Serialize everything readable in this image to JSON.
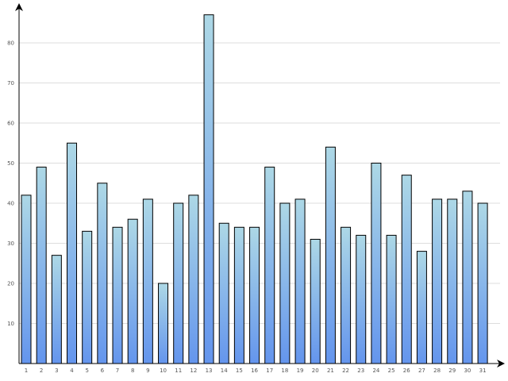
{
  "chart_data": {
    "type": "bar",
    "title": "",
    "xlabel": "",
    "ylabel": "",
    "categories": [
      "1",
      "2",
      "3",
      "4",
      "5",
      "6",
      "7",
      "8",
      "9",
      "10",
      "11",
      "12",
      "13",
      "14",
      "15",
      "16",
      "17",
      "18",
      "19",
      "20",
      "21",
      "22",
      "23",
      "24",
      "25",
      "26",
      "27",
      "28",
      "29",
      "30",
      "31"
    ],
    "values": [
      42,
      49,
      27,
      55,
      33,
      45,
      34,
      36,
      41,
      20,
      40,
      42,
      87,
      35,
      34,
      34,
      49,
      40,
      41,
      31,
      54,
      34,
      32,
      50,
      32,
      47,
      28,
      41,
      41,
      43,
      40
    ],
    "ylim": [
      0,
      90
    ],
    "yticks": [
      10,
      20,
      30,
      40,
      50,
      60,
      70,
      80
    ],
    "grid": true,
    "legend": "none",
    "colors": {
      "bar_top": "#add8e6",
      "bar_bottom": "#6495ed",
      "bar_stroke": "#000000",
      "grid": "#dddddd"
    }
  }
}
